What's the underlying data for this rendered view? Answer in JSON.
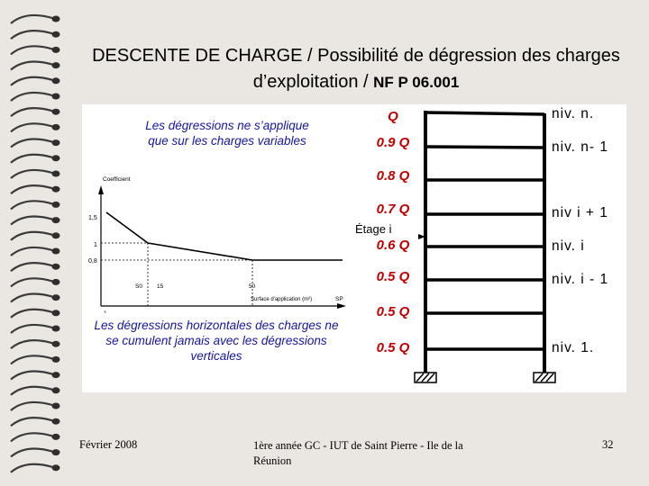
{
  "slide": {
    "title_main": "DESCENTE DE CHARGE / Possibilité de dégression des charges d’exploitation /",
    "title_norm": "NF P 06.001",
    "note_top": "Les dégressions ne s’applique que sur les charges variables",
    "note_bottom": "Les dégressions horizontales des charges ne se cumulent jamais avec les dégressions verticales"
  },
  "graph": {
    "y_axis_label": "Coefficient",
    "y_ticks": [
      "1,5",
      "1",
      "0,8"
    ],
    "x_ticks": [
      "1",
      "S0",
      "15",
      "50"
    ],
    "x_axis_label": "Surface d'application (m²)",
    "x_end_label": "SP",
    "y_values_note": "coefficient decreases from 1.5 at 1 m² to about 1 at 15 m² and 0.8 at 50 m², constant after"
  },
  "building": {
    "q_labels": [
      "Q",
      "0.9 Q",
      "0.8 Q",
      "0.7 Q",
      "0.6 Q",
      "0.5 Q",
      "0.5 Q",
      "0.5 Q"
    ],
    "levels": {
      "top": "niv. n.",
      "n_minus_1": "niv. n- 1",
      "i_plus_1": "niv  i + 1",
      "i": "niv. i",
      "i_minus_1": "niv. i - 1",
      "first": "niv. 1."
    },
    "etage_label": "Étage i"
  },
  "footer": {
    "date": "Février 2008",
    "center": "1ère année GC - IUT de Saint Pierre - Ile de la Réunion",
    "page": "32"
  },
  "colors": {
    "background": "#eae6e1",
    "q_labels": "#c00000",
    "notes": "#1515a0"
  }
}
